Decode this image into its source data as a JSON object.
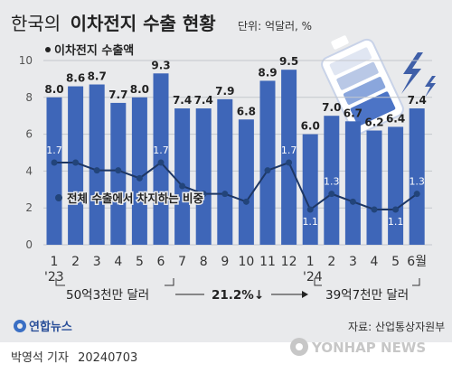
{
  "header": {
    "title_prefix": "한국의",
    "title_main": "이차전지 수출 현황",
    "unit": "단위: 억달러, %"
  },
  "legend": {
    "bar_label": "이차전지 수출액",
    "line_label": "전체 수출에서 차지하는 비중"
  },
  "annotations": {
    "year_2023": "'23",
    "year_2024": "'24",
    "total_2023": "50억3천만 달러",
    "change": "21.2%↓",
    "total_2024": "39억7천만 달러"
  },
  "source": "자료: 산업통상자원부",
  "agency_logo": "연합뉴스",
  "watermark": "YONHAP NEWS",
  "credit": {
    "author": "박영석 기자",
    "date": "20240703"
  },
  "chart_data": {
    "type": "bar",
    "categories": [
      "1",
      "2",
      "3",
      "4",
      "5",
      "6",
      "7",
      "8",
      "9",
      "10",
      "11",
      "12",
      "1",
      "2",
      "3",
      "4",
      "5",
      "6월"
    ],
    "ylim": [
      0,
      10
    ],
    "yticks": [
      0,
      2,
      4,
      6,
      8,
      10
    ],
    "series": [
      {
        "name": "이차전지 수출액",
        "type": "bar",
        "values": [
          8.0,
          8.6,
          8.7,
          7.7,
          8.0,
          9.3,
          7.4,
          7.4,
          7.9,
          6.8,
          8.9,
          9.5,
          6.0,
          7.0,
          6.7,
          6.2,
          6.4,
          7.4
        ]
      },
      {
        "name": "전체 수출에서 차지하는 비중",
        "type": "line",
        "values": [
          1.7,
          1.7,
          1.6,
          1.6,
          1.5,
          1.7,
          1.4,
          1.3,
          1.3,
          1.2,
          1.6,
          1.7,
          1.1,
          1.3,
          1.2,
          1.1,
          1.1,
          1.3
        ],
        "labeled_points": {
          "0": "1.7",
          "5": "1.7",
          "11": "1.7",
          "12": "1.1",
          "13": "1.3",
          "16": "1.1",
          "17": "1.3"
        }
      }
    ],
    "colors": {
      "bar": "#3e66b8",
      "bar_label": "#ffffff",
      "line": "#1e3764",
      "marker": "#22447a"
    }
  }
}
